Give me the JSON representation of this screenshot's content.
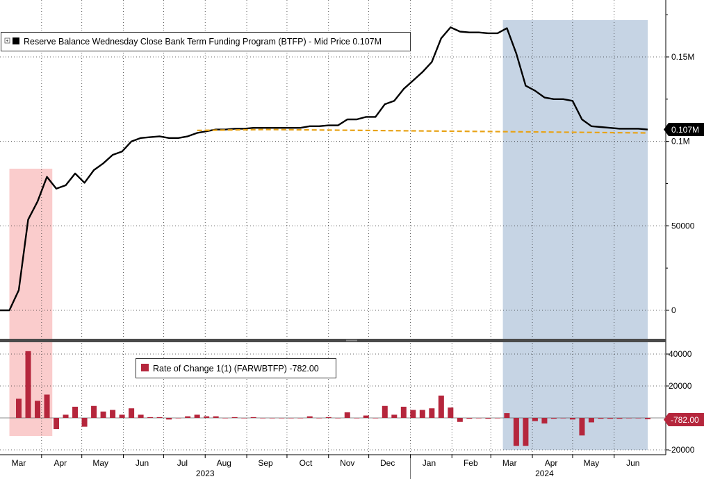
{
  "chart_data": [
    {
      "type": "line",
      "legend": "Reserve Balance Wednesday Close Bank Term Funding Program (BTFP) - Mid Price 0.107M",
      "last_value_label": "0.107M",
      "ylim": [
        -5000,
        180000
      ],
      "y_ticks": [
        {
          "value": 0,
          "label": "0"
        },
        {
          "value": 50000,
          "label": "50000"
        },
        {
          "value": 100000,
          "label": "0.1M"
        },
        {
          "value": 150000,
          "label": "0.15M"
        }
      ],
      "series": [
        {
          "kind": "btfp",
          "color": "#000000",
          "points": [
            [
              "2023-03-01",
              0
            ],
            [
              "2023-03-08",
              0
            ],
            [
              "2023-03-15",
              11900
            ],
            [
              "2023-03-22",
              53700
            ],
            [
              "2023-03-29",
              64400
            ],
            [
              "2023-04-05",
              79000
            ],
            [
              "2023-04-12",
              72000
            ],
            [
              "2023-04-19",
              74000
            ],
            [
              "2023-04-26",
              81000
            ],
            [
              "2023-05-03",
              75500
            ],
            [
              "2023-05-10",
              83000
            ],
            [
              "2023-05-17",
              87000
            ],
            [
              "2023-05-24",
              92000
            ],
            [
              "2023-05-31",
              94000
            ],
            [
              "2023-06-07",
              100000
            ],
            [
              "2023-06-14",
              102000
            ],
            [
              "2023-06-21",
              102500
            ],
            [
              "2023-06-28",
              103000
            ],
            [
              "2023-07-05",
              102000
            ],
            [
              "2023-07-12",
              102000
            ],
            [
              "2023-07-19",
              103000
            ],
            [
              "2023-07-26",
              105000
            ],
            [
              "2023-08-02",
              106000
            ],
            [
              "2023-08-09",
              107000
            ],
            [
              "2023-08-16",
              107000
            ],
            [
              "2023-08-23",
              107500
            ],
            [
              "2023-08-30",
              107500
            ],
            [
              "2023-09-06",
              108000
            ],
            [
              "2023-09-13",
              108000
            ],
            [
              "2023-09-20",
              108000
            ],
            [
              "2023-09-27",
              108000
            ],
            [
              "2023-10-04",
              108000
            ],
            [
              "2023-10-11",
              108000
            ],
            [
              "2023-10-18",
              109000
            ],
            [
              "2023-10-25",
              109000
            ],
            [
              "2023-11-01",
              109500
            ],
            [
              "2023-11-08",
              109500
            ],
            [
              "2023-11-15",
              113000
            ],
            [
              "2023-11-22",
              113000
            ],
            [
              "2023-11-29",
              114500
            ],
            [
              "2023-12-06",
              114500
            ],
            [
              "2023-12-13",
              122000
            ],
            [
              "2023-12-20",
              124000
            ],
            [
              "2023-12-27",
              131000
            ],
            [
              "2024-01-03",
              136000
            ],
            [
              "2024-01-10",
              141000
            ],
            [
              "2024-01-17",
              147000
            ],
            [
              "2024-01-24",
              161000
            ],
            [
              "2024-01-31",
              167500
            ],
            [
              "2024-02-07",
              165000
            ],
            [
              "2024-02-14",
              164500
            ],
            [
              "2024-02-21",
              164500
            ],
            [
              "2024-02-28",
              164000
            ],
            [
              "2024-03-06",
              164000
            ],
            [
              "2024-03-13",
              167000
            ],
            [
              "2024-03-20",
              152000
            ],
            [
              "2024-03-27",
              133000
            ],
            [
              "2024-04-03",
              130000
            ],
            [
              "2024-04-10",
              126000
            ],
            [
              "2024-04-17",
              125000
            ],
            [
              "2024-04-24",
              125000
            ],
            [
              "2024-05-01",
              124000
            ],
            [
              "2024-05-08",
              113000
            ],
            [
              "2024-05-15",
              109000
            ],
            [
              "2024-05-22",
              108500
            ],
            [
              "2024-05-29",
              108000
            ],
            [
              "2024-06-05",
              107500
            ],
            [
              "2024-06-12",
              107500
            ],
            [
              "2024-06-19",
              107500
            ],
            [
              "2024-06-26",
              107000
            ]
          ]
        },
        {
          "kind": "trend",
          "color": "#e8a317",
          "dashed": true,
          "points": [
            [
              "2023-07-26",
              106500
            ],
            [
              "2023-09-15",
              107000
            ],
            [
              "2024-06-26",
              105000
            ]
          ]
        }
      ]
    },
    {
      "type": "bar",
      "legend": "Rate of Change 1(1) (FARWBTFP) -782.00",
      "last_value_label": "-782.00",
      "ylim": [
        -21000,
        47000
      ],
      "y_ticks": [
        {
          "value": -20000,
          "label": "-20000"
        },
        {
          "value": 20000,
          "label": "20000"
        },
        {
          "value": 40000,
          "label": "40000"
        }
      ],
      "color": "#b5263c",
      "bars": [
        [
          "2023-03-15",
          12000
        ],
        [
          "2023-03-22",
          41800
        ],
        [
          "2023-03-29",
          10700
        ],
        [
          "2023-04-05",
          14600
        ],
        [
          "2023-04-12",
          -7000
        ],
        [
          "2023-04-19",
          2000
        ],
        [
          "2023-04-26",
          7000
        ],
        [
          "2023-05-03",
          -5500
        ],
        [
          "2023-05-10",
          7500
        ],
        [
          "2023-05-17",
          4000
        ],
        [
          "2023-05-24",
          5000
        ],
        [
          "2023-05-31",
          2000
        ],
        [
          "2023-06-07",
          6000
        ],
        [
          "2023-06-14",
          2000
        ],
        [
          "2023-06-21",
          500
        ],
        [
          "2023-06-28",
          500
        ],
        [
          "2023-07-05",
          -1000
        ],
        [
          "2023-07-12",
          0
        ],
        [
          "2023-07-19",
          1000
        ],
        [
          "2023-07-26",
          2000
        ],
        [
          "2023-08-02",
          1000
        ],
        [
          "2023-08-09",
          1000
        ],
        [
          "2023-08-16",
          0
        ],
        [
          "2023-08-23",
          500
        ],
        [
          "2023-08-30",
          0
        ],
        [
          "2023-09-06",
          500
        ],
        [
          "2023-09-13",
          0
        ],
        [
          "2023-09-20",
          0
        ],
        [
          "2023-09-27",
          0
        ],
        [
          "2023-10-04",
          0
        ],
        [
          "2023-10-11",
          0
        ],
        [
          "2023-10-18",
          1000
        ],
        [
          "2023-10-25",
          0
        ],
        [
          "2023-11-01",
          500
        ],
        [
          "2023-11-08",
          0
        ],
        [
          "2023-11-15",
          3500
        ],
        [
          "2023-11-22",
          0
        ],
        [
          "2023-11-29",
          1500
        ],
        [
          "2023-12-06",
          0
        ],
        [
          "2023-12-13",
          7500
        ],
        [
          "2023-12-20",
          2000
        ],
        [
          "2023-12-27",
          7000
        ],
        [
          "2024-01-03",
          5000
        ],
        [
          "2024-01-10",
          5000
        ],
        [
          "2024-01-17",
          6000
        ],
        [
          "2024-01-24",
          14000
        ],
        [
          "2024-01-31",
          6500
        ],
        [
          "2024-02-07",
          -2500
        ],
        [
          "2024-02-14",
          -500
        ],
        [
          "2024-02-21",
          0
        ],
        [
          "2024-02-28",
          -500
        ],
        [
          "2024-03-06",
          0
        ],
        [
          "2024-03-13",
          3000
        ],
        [
          "2024-03-20",
          -17500
        ],
        [
          "2024-03-27",
          -17500
        ],
        [
          "2024-04-03",
          -2000
        ],
        [
          "2024-04-10",
          -3500
        ],
        [
          "2024-04-17",
          -500
        ],
        [
          "2024-04-24",
          0
        ],
        [
          "2024-05-01",
          -1000
        ],
        [
          "2024-05-08",
          -11000
        ],
        [
          "2024-05-15",
          -2800
        ],
        [
          "2024-05-22",
          -500
        ],
        [
          "2024-05-29",
          -500
        ],
        [
          "2024-06-05",
          -500
        ],
        [
          "2024-06-12",
          0
        ],
        [
          "2024-06-19",
          0
        ],
        [
          "2024-06-26",
          -782
        ]
      ]
    }
  ],
  "highlight_ranges": [
    {
      "start": "2023-03-08",
      "end": "2023-04-09",
      "color": "#f9c6c6"
    },
    {
      "start": "2024-03-10",
      "end": "2024-06-26",
      "color": "#c3d2e3"
    }
  ],
  "x_axis": {
    "months": [
      {
        "label": "Mar",
        "date": "2023-03-15"
      },
      {
        "label": "Apr",
        "date": "2023-04-15"
      },
      {
        "label": "May",
        "date": "2023-05-15"
      },
      {
        "label": "Jun",
        "date": "2023-06-15"
      },
      {
        "label": "Jul",
        "date": "2023-07-15"
      },
      {
        "label": "Aug",
        "date": "2023-08-15"
      },
      {
        "label": "Sep",
        "date": "2023-09-15"
      },
      {
        "label": "Oct",
        "date": "2023-10-15"
      },
      {
        "label": "Nov",
        "date": "2023-11-15"
      },
      {
        "label": "Dec",
        "date": "2023-12-15"
      },
      {
        "label": "Jan",
        "date": "2024-01-15"
      },
      {
        "label": "Feb",
        "date": "2024-02-15"
      },
      {
        "label": "Mar",
        "date": "2024-03-15"
      },
      {
        "label": "Apr",
        "date": "2024-04-15"
      },
      {
        "label": "May",
        "date": "2024-05-15"
      },
      {
        "label": "Jun",
        "date": "2024-06-15"
      }
    ],
    "years": [
      {
        "label": "2023",
        "date": "2023-08-01"
      },
      {
        "label": "2024",
        "date": "2024-04-10"
      }
    ]
  }
}
